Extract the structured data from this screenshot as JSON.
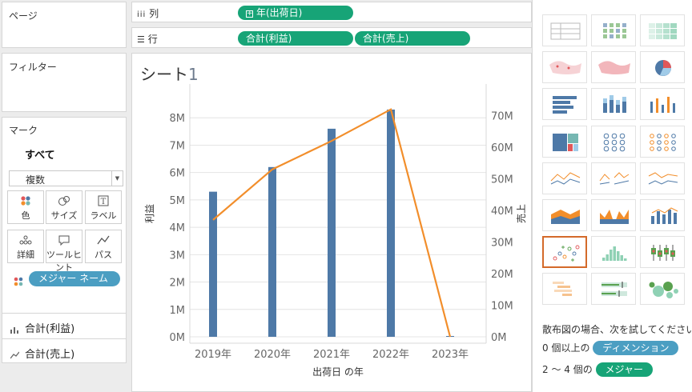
{
  "pages_card": {
    "title": "ページ"
  },
  "filters_card": {
    "title": "フィルター"
  },
  "marks_card": {
    "title": "マーク",
    "all_label": "すべて",
    "mark_type": "複数",
    "buttons": [
      {
        "label": "色",
        "icon": "color-dots-icon"
      },
      {
        "label": "サイズ",
        "icon": "size-circles-icon"
      },
      {
        "label": "ラベル",
        "icon": "label-t-icon"
      },
      {
        "label": "詳細",
        "icon": "detail-dots-icon"
      },
      {
        "label": "ツールヒント",
        "icon": "tooltip-bubble-icon"
      },
      {
        "label": "パス",
        "icon": "path-line-icon"
      }
    ],
    "measure_names_pill": "メジャー ネーム",
    "sections": [
      {
        "label": "合計(利益)",
        "icon": "bar-chart-icon"
      },
      {
        "label": "合計(売上)",
        "icon": "line-chart-icon"
      }
    ]
  },
  "shelves": {
    "columns": {
      "label": "列",
      "icon": "columns-icon",
      "pills": [
        "年(出荷日)"
      ]
    },
    "rows": {
      "label": "行",
      "icon": "rows-icon",
      "pills": [
        "合計(利益)",
        "合計(売上)"
      ]
    }
  },
  "sheet": {
    "title_text": "シート",
    "title_num": "1"
  },
  "chart_data": {
    "type": "bar",
    "categories": [
      "2019年",
      "2020年",
      "2021年",
      "2022年",
      "2023年"
    ],
    "xlabel": "出荷日 の年",
    "series": [
      {
        "name": "合計(利益)",
        "type": "bar",
        "axis": "left",
        "values": [
          5300000,
          6200000,
          7600000,
          8300000,
          0
        ]
      },
      {
        "name": "合計(売上)",
        "type": "line",
        "axis": "right",
        "values": [
          37000000,
          53000000,
          62000000,
          72000000,
          0
        ]
      }
    ],
    "left_axis": {
      "label": "利益",
      "ticks": [
        "0M",
        "1M",
        "2M",
        "3M",
        "4M",
        "5M",
        "6M",
        "7M",
        "8M"
      ],
      "max": 9000000
    },
    "right_axis": {
      "label": "売上",
      "ticks": [
        "0M",
        "10M",
        "20M",
        "30M",
        "40M",
        "50M",
        "60M",
        "70M"
      ],
      "max": 78000000
    },
    "colors": {
      "bar": "#4e79a7",
      "line": "#f28e2b",
      "grid": "#e4e4e4"
    }
  },
  "show_me": {
    "hint_title": "散布図の場合、次を試してください。",
    "line1_prefix": "0 個以上の",
    "line1_pill": "ディメンション",
    "line2_prefix": "2 ～ 4 個の",
    "line2_pill": "メジャー",
    "colors": {
      "dimension": "#4b9ec2",
      "measure": "#17a477",
      "selected": "#d46a2a"
    },
    "thumbnails": [
      "text-table",
      "heat-map",
      "highlight-table",
      "symbol-map",
      "filled-map",
      "pie-chart",
      "horizontal-bars",
      "stacked-bars",
      "side-by-side-bars",
      "treemap",
      "circle-views",
      "side-by-side-circles",
      "continuous-lines",
      "discrete-lines",
      "dual-lines",
      "area-continuous",
      "area-discrete",
      "dual-combination",
      "scatter-plot",
      "histogram",
      "box-and-whisker",
      "gantt",
      "bullet-graph",
      "packed-bubbles"
    ]
  }
}
